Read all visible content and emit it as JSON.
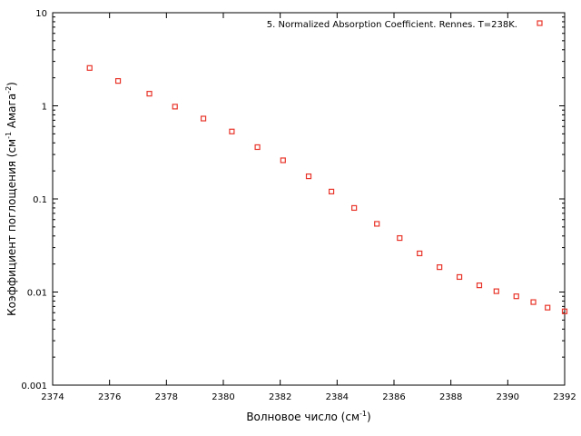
{
  "chart_data": {
    "type": "scatter",
    "title": "",
    "xlabel": "Волновое число (см",
    "xlabel_sup": "-1",
    "xlabel_tail": ")",
    "ylabel": "Коэффициент поглощения (см",
    "ylabel_sup1": "-1",
    "ylabel_mid": " Амага",
    "ylabel_sup2": "-2",
    "ylabel_tail": ")",
    "xlim": [
      2374,
      2392
    ],
    "ylim": [
      0.001,
      10
    ],
    "yscale": "log",
    "x_ticks": [
      2374,
      2376,
      2378,
      2380,
      2382,
      2384,
      2386,
      2388,
      2390,
      2392
    ],
    "x_tick_labels": [
      "2374",
      "2376",
      "2378",
      "2380",
      "2382",
      "2384",
      "2386",
      "2388",
      "2390",
      "2392"
    ],
    "y_ticks": [
      0.001,
      0.01,
      0.1,
      1,
      10
    ],
    "y_tick_labels": [
      "0.001",
      "0.01",
      "0.1",
      "1",
      "10"
    ],
    "grid": false,
    "legend_position": "top-right",
    "series": [
      {
        "name": "5. Normalized Absorption Coefficient. Rennes. T=238K.",
        "color": "#e8352a",
        "marker": "open-square",
        "x": [
          2375.3,
          2376.3,
          2377.4,
          2378.3,
          2379.3,
          2380.3,
          2381.2,
          2382.1,
          2383.0,
          2383.8,
          2384.6,
          2385.4,
          2386.2,
          2386.9,
          2387.6,
          2388.3,
          2389.0,
          2389.6,
          2390.3,
          2390.9,
          2391.4,
          2392.0
        ],
        "y": [
          2.55,
          1.85,
          1.35,
          0.98,
          0.73,
          0.53,
          0.36,
          0.26,
          0.175,
          0.12,
          0.08,
          0.054,
          0.038,
          0.026,
          0.0185,
          0.0145,
          0.0118,
          0.0102,
          0.009,
          0.0078,
          0.0068,
          0.0062
        ]
      }
    ]
  }
}
